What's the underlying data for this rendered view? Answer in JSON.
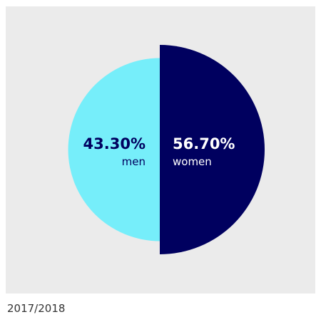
{
  "chart_data": {
    "type": "pie",
    "year": "2017/2018",
    "slices": [
      {
        "label": "men",
        "value": 43.3,
        "value_text": "43.30%",
        "color": "#76eefa"
      },
      {
        "label": "women",
        "value": 56.7,
        "value_text": "56.70%",
        "color": "#00005f"
      }
    ],
    "background": "#ebebeb",
    "label_color_men": "#00005f",
    "label_color_women": "#ffffff"
  }
}
